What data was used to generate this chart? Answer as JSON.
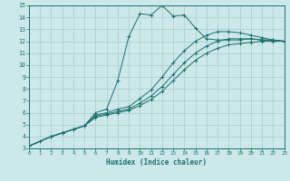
{
  "xlabel": "Humidex (Indice chaleur)",
  "bg_color": "#cce8e8",
  "grid_color": "#aacccc",
  "line_color": "#1a7070",
  "xlim": [
    0,
    23
  ],
  "ylim": [
    3,
    15
  ],
  "xticks": [
    0,
    1,
    2,
    3,
    4,
    5,
    6,
    7,
    8,
    9,
    10,
    11,
    12,
    13,
    14,
    15,
    16,
    17,
    18,
    19,
    20,
    21,
    22,
    23
  ],
  "yticks": [
    3,
    4,
    5,
    6,
    7,
    8,
    9,
    10,
    11,
    12,
    13,
    14,
    15
  ],
  "lines": [
    {
      "x": [
        0,
        1,
        2,
        3,
        4,
        5,
        6,
        7,
        8,
        9,
        10,
        11,
        12,
        13,
        14,
        15,
        16,
        17,
        18,
        19,
        20,
        21,
        22,
        23
      ],
      "y": [
        3.2,
        3.6,
        4.0,
        4.3,
        4.6,
        4.9,
        6.0,
        6.3,
        8.7,
        12.4,
        14.3,
        14.2,
        15.0,
        14.1,
        14.2,
        13.1,
        12.2,
        12.1,
        12.1,
        12.1,
        12.2,
        12.1,
        12.1,
        12.0
      ]
    },
    {
      "x": [
        0,
        2,
        3,
        4,
        5,
        6,
        7,
        8,
        9,
        10,
        11,
        12,
        13,
        14,
        15,
        16,
        17,
        18,
        19,
        20,
        21,
        22,
        23
      ],
      "y": [
        3.2,
        4.0,
        4.3,
        4.6,
        4.9,
        5.8,
        6.0,
        6.3,
        6.5,
        7.2,
        7.9,
        9.0,
        10.2,
        11.2,
        12.0,
        12.5,
        12.8,
        12.8,
        12.7,
        12.5,
        12.3,
        12.1,
        12.0
      ]
    },
    {
      "x": [
        0,
        2,
        3,
        4,
        5,
        6,
        7,
        8,
        9,
        10,
        11,
        12,
        13,
        14,
        15,
        16,
        17,
        18,
        19,
        20,
        21,
        22,
        23
      ],
      "y": [
        3.2,
        4.0,
        4.3,
        4.6,
        4.9,
        5.7,
        5.9,
        6.1,
        6.3,
        6.8,
        7.4,
        8.2,
        9.2,
        10.2,
        11.0,
        11.6,
        12.0,
        12.2,
        12.2,
        12.2,
        12.1,
        12.1,
        12.0
      ]
    },
    {
      "x": [
        0,
        2,
        3,
        4,
        5,
        6,
        7,
        8,
        9,
        10,
        11,
        12,
        13,
        14,
        15,
        16,
        17,
        18,
        19,
        20,
        21,
        22,
        23
      ],
      "y": [
        3.2,
        4.0,
        4.3,
        4.6,
        4.9,
        5.6,
        5.8,
        6.0,
        6.2,
        6.6,
        7.1,
        7.8,
        8.7,
        9.6,
        10.4,
        11.0,
        11.4,
        11.7,
        11.8,
        11.9,
        12.0,
        12.0,
        12.0
      ]
    }
  ]
}
